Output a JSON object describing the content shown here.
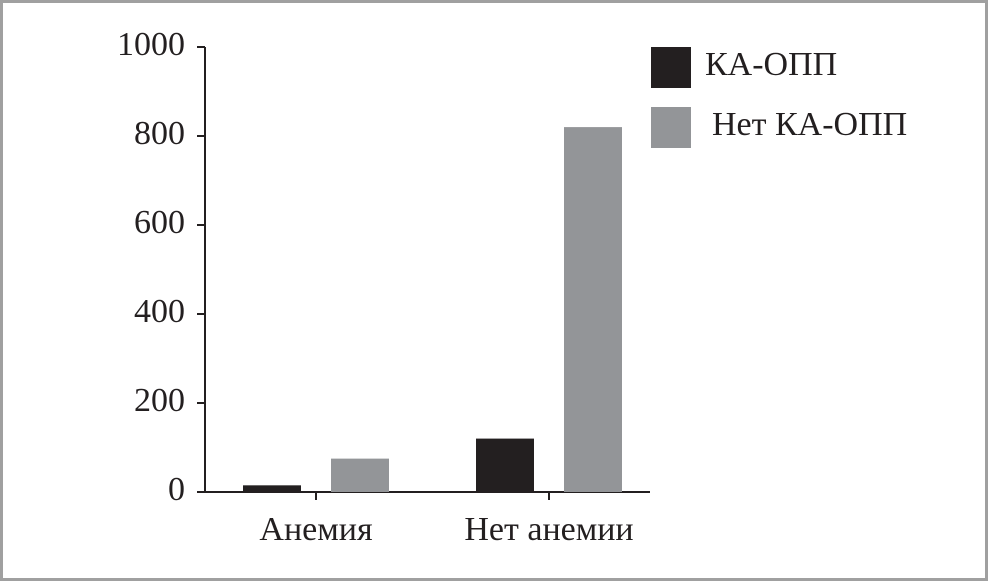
{
  "chart_data": {
    "type": "bar",
    "categories": [
      "Анемия",
      "Нет анемии"
    ],
    "series": [
      {
        "name": "КА-ОПП",
        "color": "#231f20",
        "values": [
          15,
          120
        ]
      },
      {
        "name": "Нет КА-ОПП",
        "color": "#939598",
        "values": [
          75,
          820
        ]
      }
    ],
    "ylim": [
      0,
      1000
    ],
    "yticks": [
      0,
      200,
      400,
      600,
      800,
      1000
    ],
    "grid": false,
    "legend": "top-right"
  }
}
